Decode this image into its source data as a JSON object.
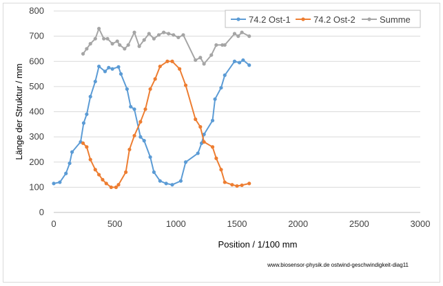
{
  "chart_data": {
    "type": "line",
    "xlabel": "Position  /  1/100 mm",
    "ylabel": "Länge der Struktur / mm",
    "xlim": [
      0,
      3000
    ],
    "ylim": [
      0,
      800
    ],
    "xticks": [
      0,
      500,
      1000,
      1500,
      2000,
      2500,
      3000
    ],
    "yticks": [
      0,
      100,
      200,
      300,
      400,
      500,
      600,
      700,
      800
    ],
    "grid": "horizontal",
    "legend": "top-right",
    "footer": "www.biosensor-physik.de  ostwind-geschwindigkeit-diag11",
    "series": [
      {
        "name": "74.2 Ost-1",
        "color": "#5b9bd5",
        "points": [
          [
            0,
            115
          ],
          [
            50,
            120
          ],
          [
            100,
            155
          ],
          [
            130,
            195
          ],
          [
            150,
            240
          ],
          [
            220,
            280
          ],
          [
            245,
            355
          ],
          [
            270,
            390
          ],
          [
            300,
            460
          ],
          [
            340,
            520
          ],
          [
            370,
            580
          ],
          [
            420,
            560
          ],
          [
            450,
            575
          ],
          [
            480,
            570
          ],
          [
            530,
            578
          ],
          [
            550,
            550
          ],
          [
            600,
            490
          ],
          [
            630,
            420
          ],
          [
            660,
            410
          ],
          [
            710,
            300
          ],
          [
            740,
            285
          ],
          [
            790,
            220
          ],
          [
            820,
            160
          ],
          [
            870,
            125
          ],
          [
            920,
            115
          ],
          [
            970,
            110
          ],
          [
            1040,
            125
          ],
          [
            1080,
            200
          ],
          [
            1180,
            235
          ],
          [
            1210,
            275
          ],
          [
            1230,
            310
          ],
          [
            1300,
            365
          ],
          [
            1320,
            450
          ],
          [
            1370,
            495
          ],
          [
            1400,
            545
          ],
          [
            1480,
            600
          ],
          [
            1520,
            595
          ],
          [
            1550,
            605
          ],
          [
            1600,
            585
          ]
        ]
      },
      {
        "name": "74.2 Ost-2",
        "color": "#ed7d31",
        "points": [
          [
            240,
            275
          ],
          [
            270,
            260
          ],
          [
            300,
            210
          ],
          [
            340,
            170
          ],
          [
            370,
            150
          ],
          [
            400,
            130
          ],
          [
            430,
            115
          ],
          [
            470,
            100
          ],
          [
            510,
            100
          ],
          [
            530,
            110
          ],
          [
            590,
            160
          ],
          [
            620,
            250
          ],
          [
            660,
            305
          ],
          [
            710,
            360
          ],
          [
            750,
            410
          ],
          [
            790,
            490
          ],
          [
            830,
            530
          ],
          [
            870,
            580
          ],
          [
            930,
            600
          ],
          [
            970,
            600
          ],
          [
            1030,
            570
          ],
          [
            1080,
            505
          ],
          [
            1160,
            370
          ],
          [
            1200,
            340
          ],
          [
            1230,
            280
          ],
          [
            1300,
            260
          ],
          [
            1330,
            215
          ],
          [
            1370,
            170
          ],
          [
            1400,
            120
          ],
          [
            1460,
            110
          ],
          [
            1500,
            105
          ],
          [
            1540,
            108
          ],
          [
            1600,
            115
          ]
        ]
      },
      {
        "name": "Summe",
        "color": "#a5a5a5",
        "points": [
          [
            240,
            630
          ],
          [
            270,
            650
          ],
          [
            300,
            670
          ],
          [
            340,
            690
          ],
          [
            370,
            730
          ],
          [
            410,
            690
          ],
          [
            440,
            690
          ],
          [
            480,
            670
          ],
          [
            520,
            680
          ],
          [
            540,
            665
          ],
          [
            580,
            650
          ],
          [
            610,
            665
          ],
          [
            660,
            715
          ],
          [
            700,
            660
          ],
          [
            740,
            685
          ],
          [
            780,
            710
          ],
          [
            820,
            690
          ],
          [
            860,
            705
          ],
          [
            900,
            715
          ],
          [
            940,
            710
          ],
          [
            980,
            705
          ],
          [
            1020,
            695
          ],
          [
            1060,
            705
          ],
          [
            1160,
            605
          ],
          [
            1200,
            615
          ],
          [
            1230,
            590
          ],
          [
            1290,
            625
          ],
          [
            1330,
            665
          ],
          [
            1380,
            665
          ],
          [
            1400,
            665
          ],
          [
            1480,
            710
          ],
          [
            1510,
            700
          ],
          [
            1540,
            715
          ],
          [
            1600,
            700
          ]
        ]
      }
    ]
  }
}
